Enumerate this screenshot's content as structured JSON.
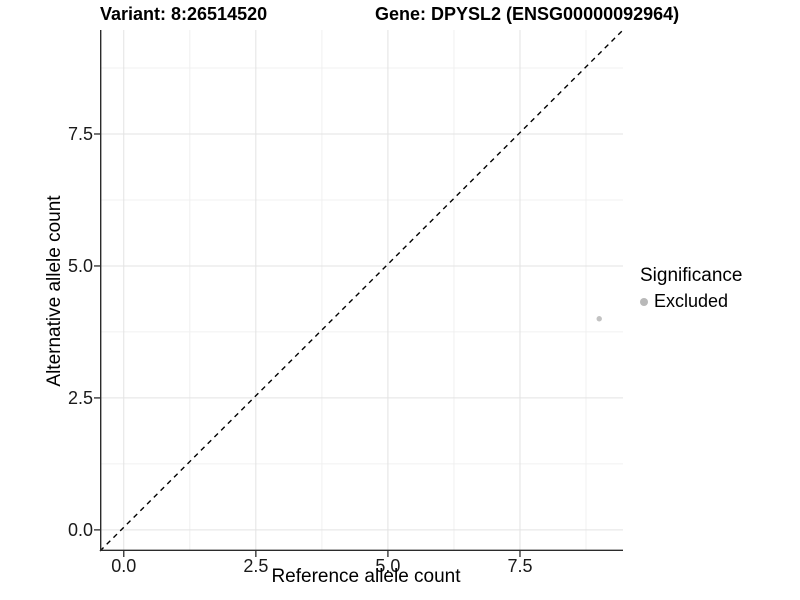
{
  "chart_data": {
    "type": "scatter",
    "titles": {
      "left": "Variant: 8:26514520",
      "right": "Gene: DPYSL2 (ENSG00000092964)"
    },
    "xlabel": "Reference allele count",
    "ylabel": "Alternative allele count",
    "xlim": [
      -0.45,
      9.45
    ],
    "ylim": [
      -0.4,
      9.47
    ],
    "x_ticks": [
      0,
      2.5,
      5,
      7.5
    ],
    "x_tick_labels": [
      "0.0",
      "2.5",
      "5.0",
      "7.5"
    ],
    "y_ticks": [
      0,
      2.5,
      5,
      7.5
    ],
    "y_tick_labels": [
      "0.0",
      "2.5",
      "5.0",
      "7.5"
    ],
    "x_minor_ticks": [
      1.25,
      3.75,
      6.25,
      8.75
    ],
    "y_minor_ticks": [
      1.25,
      3.75,
      6.25,
      8.75
    ],
    "grid": true,
    "points": [
      {
        "x": 9,
        "y": 4,
        "series": "Excluded"
      }
    ],
    "reference_line": {
      "type": "identity",
      "style": "dashed",
      "color": "#000000"
    },
    "legend": {
      "title": "Significance",
      "position": "right",
      "entries": [
        {
          "label": "Excluded",
          "color": "#b9b9b9"
        }
      ]
    },
    "colors": {
      "point": "#c2c2c2",
      "grid_major": "#e3e3e3",
      "grid_minor": "#f0f0f0",
      "axis_line": "#2b2b2b",
      "tick_text": "#1a1a1a"
    }
  }
}
